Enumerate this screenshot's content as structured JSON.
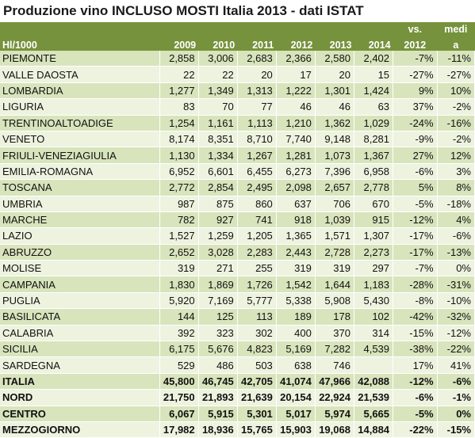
{
  "title": "Produzione vino INCLUSO MOSTI Italia 2013 - dati ISTAT",
  "header": {
    "unit": "Hl/1000",
    "years": [
      "2009",
      "2010",
      "2011",
      "2012",
      "2013",
      "2014"
    ],
    "vs_top": "vs.",
    "vs_bottom": "2012",
    "media_top": "medi",
    "media_bottom": "a"
  },
  "rows": [
    {
      "name": "PIEMONTE",
      "values": [
        "2,858",
        "3,006",
        "2,683",
        "2,366",
        "2,580",
        "2,402"
      ],
      "vs": "-7%",
      "media": "-11%"
    },
    {
      "name": "VALLE DAOSTA",
      "values": [
        "22",
        "22",
        "20",
        "17",
        "20",
        "15"
      ],
      "vs": "-27%",
      "media": "-27%"
    },
    {
      "name": "LOMBARDIA",
      "values": [
        "1,277",
        "1,349",
        "1,313",
        "1,222",
        "1,301",
        "1,424"
      ],
      "vs": "9%",
      "media": "10%"
    },
    {
      "name": "LIGURIA",
      "values": [
        "83",
        "70",
        "77",
        "46",
        "46",
        "63"
      ],
      "vs": "37%",
      "media": "-2%"
    },
    {
      "name": "TRENTINOALTOADIGE",
      "values": [
        "1,254",
        "1,161",
        "1,113",
        "1,210",
        "1,362",
        "1,029"
      ],
      "vs": "-24%",
      "media": "-16%"
    },
    {
      "name": "VENETO",
      "values": [
        "8,174",
        "8,351",
        "8,710",
        "7,740",
        "9,148",
        "8,281"
      ],
      "vs": "-9%",
      "media": "-2%"
    },
    {
      "name": "FRIULI-VENEZIAGIULIA",
      "values": [
        "1,130",
        "1,334",
        "1,267",
        "1,281",
        "1,073",
        "1,367"
      ],
      "vs": "27%",
      "media": "12%"
    },
    {
      "name": "EMILIA-ROMAGNA",
      "values": [
        "6,952",
        "6,601",
        "6,455",
        "6,273",
        "7,396",
        "6,958"
      ],
      "vs": "-6%",
      "media": "3%"
    },
    {
      "name": "TOSCANA",
      "values": [
        "2,772",
        "2,854",
        "2,495",
        "2,098",
        "2,657",
        "2,778"
      ],
      "vs": "5%",
      "media": "8%"
    },
    {
      "name": "UMBRIA",
      "values": [
        "987",
        "875",
        "860",
        "637",
        "706",
        "670"
      ],
      "vs": "-5%",
      "media": "-18%"
    },
    {
      "name": "MARCHE",
      "values": [
        "782",
        "927",
        "741",
        "918",
        "1,039",
        "915"
      ],
      "vs": "-12%",
      "media": "4%"
    },
    {
      "name": "LAZIO",
      "values": [
        "1,527",
        "1,259",
        "1,205",
        "1,365",
        "1,571",
        "1,307"
      ],
      "vs": "-17%",
      "media": "-6%"
    },
    {
      "name": "ABRUZZO",
      "values": [
        "2,652",
        "3,028",
        "2,283",
        "2,443",
        "2,728",
        "2,273"
      ],
      "vs": "-17%",
      "media": "-13%"
    },
    {
      "name": "MOLISE",
      "values": [
        "319",
        "271",
        "255",
        "319",
        "319",
        "297"
      ],
      "vs": "-7%",
      "media": "0%"
    },
    {
      "name": "CAMPANIA",
      "values": [
        "1,830",
        "1,869",
        "1,726",
        "1,542",
        "1,644",
        "1,183"
      ],
      "vs": "-28%",
      "media": "-31%"
    },
    {
      "name": "PUGLIA",
      "values": [
        "5,920",
        "7,169",
        "5,777",
        "5,338",
        "5,908",
        "5,430"
      ],
      "vs": "-8%",
      "media": "-10%"
    },
    {
      "name": "BASILICATA",
      "values": [
        "144",
        "125",
        "113",
        "189",
        "178",
        "102"
      ],
      "vs": "-42%",
      "media": "-32%"
    },
    {
      "name": "CALABRIA",
      "values": [
        "392",
        "323",
        "302",
        "400",
        "370",
        "314"
      ],
      "vs": "-15%",
      "media": "-12%"
    },
    {
      "name": "SICILIA",
      "values": [
        "6,175",
        "5,676",
        "4,823",
        "5,169",
        "7,282",
        "4,539"
      ],
      "vs": "-38%",
      "media": "-22%"
    },
    {
      "name": "SARDEGNA",
      "values": [
        "529",
        "486",
        "503",
        "638",
        "746"
      ],
      "vs": "17%",
      "media": "41%",
      "missing2009": true
    }
  ],
  "totals": [
    {
      "name": "ITALIA",
      "values": [
        "45,800",
        "46,745",
        "42,705",
        "41,074",
        "47,966",
        "42,088"
      ],
      "vs": "-12%",
      "media": "-6%"
    },
    {
      "name": "NORD",
      "values": [
        "21,750",
        "21,893",
        "21,639",
        "20,154",
        "22,924",
        "21,539"
      ],
      "vs": "-6%",
      "media": "-1%"
    },
    {
      "name": "CENTRO",
      "values": [
        "6,067",
        "5,915",
        "5,301",
        "5,017",
        "5,974",
        "5,665"
      ],
      "vs": "-5%",
      "media": "0%"
    },
    {
      "name": "MEZZOGIORNO",
      "values": [
        "17,982",
        "18,936",
        "15,765",
        "15,903",
        "19,068",
        "14,884"
      ],
      "vs": "-22%",
      "media": "-15%"
    }
  ],
  "colors": {
    "header_bg": "#76923c",
    "row_odd": "#d8e4bc",
    "row_even": "#eef3df"
  }
}
